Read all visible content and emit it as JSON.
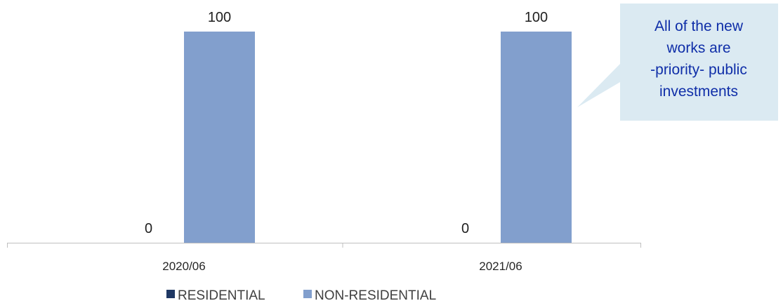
{
  "chart_data": {
    "type": "bar",
    "categories": [
      "2020/06",
      "2021/06"
    ],
    "series": [
      {
        "name": "RESIDENTIAL",
        "values": [
          0,
          0
        ],
        "color": "#1f3864"
      },
      {
        "name": "NON-RESIDENTIAL",
        "values": [
          100,
          100
        ],
        "color": "#829fcd"
      }
    ],
    "data_labels": [
      "0",
      "100",
      "0",
      "100"
    ],
    "ylim": [
      0,
      100
    ],
    "grid": false,
    "legend_position": "bottom",
    "annotation": {
      "lines": [
        "All of the new",
        "works are",
        "-priority- public",
        "investments"
      ],
      "background": "#dbeaf2",
      "text_color": "#0f2ea8"
    }
  }
}
